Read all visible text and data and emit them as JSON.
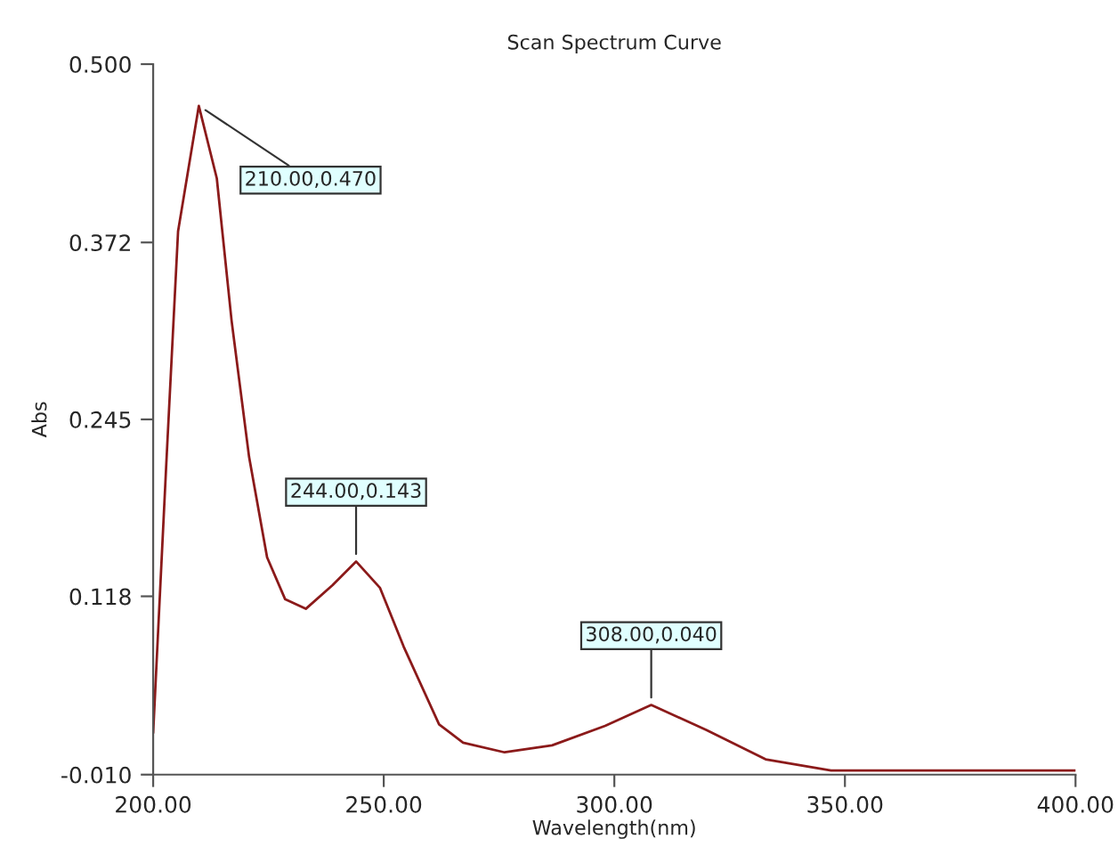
{
  "chart_data": {
    "type": "line",
    "title": "Scan Spectrum Curve",
    "xlabel": "Wavelength(nm)",
    "ylabel": "Abs",
    "series": [
      {
        "color": "#8b1a1a",
        "x": [
          200,
          202.8,
          205.4,
          209.9,
          213.8,
          217,
          220.8,
          224.7,
          228.6,
          233.1,
          238.9,
          244,
          249.2,
          254.3,
          262,
          267.2,
          276.2,
          286.5,
          298,
          308,
          320,
          332.8,
          347,
          400
        ],
        "values": [
          0.02,
          0.21,
          0.38,
          0.47,
          0.418,
          0.316,
          0.218,
          0.146,
          0.116,
          0.109,
          0.126,
          0.143,
          0.124,
          0.082,
          0.026,
          0.013,
          0.006,
          0.011,
          0.025,
          0.04,
          0.022,
          0.001,
          -0.007,
          -0.007
        ]
      }
    ],
    "annotations": [
      {
        "text": "210.00,0.470",
        "x": 210,
        "y": 0.47
      },
      {
        "text": "244.00,0.143",
        "x": 244,
        "y": 0.143
      },
      {
        "text": "308.00,0.040",
        "x": 308,
        "y": 0.04
      }
    ],
    "xlim": [
      200,
      400
    ],
    "ylim": [
      -0.01,
      0.5
    ],
    "xticks": [
      {
        "value": 200,
        "label": "200.00"
      },
      {
        "value": 250,
        "label": "250.00"
      },
      {
        "value": 300,
        "label": "300.00"
      },
      {
        "value": 350,
        "label": "350.00"
      },
      {
        "value": 400,
        "label": "400.00"
      }
    ],
    "yticks": [
      {
        "value": -0.01,
        "label": "-0.010"
      },
      {
        "value": 0.118,
        "label": "0.118"
      },
      {
        "value": 0.245,
        "label": "0.245"
      },
      {
        "value": 0.372,
        "label": "0.372"
      },
      {
        "value": 0.5,
        "label": "0.500"
      }
    ],
    "grid": false,
    "legend": false,
    "marker": "none",
    "line_style": "solid"
  }
}
